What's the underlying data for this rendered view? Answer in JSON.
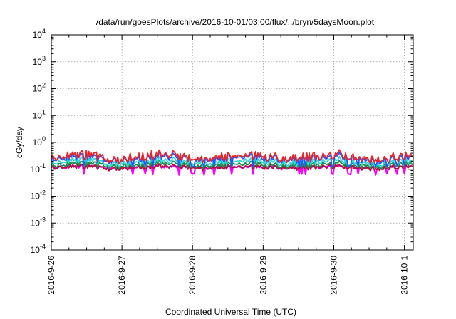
{
  "chart_data": {
    "type": "line",
    "title": "/data/run/goesPlots/archive/2016-10-01/03:00/flux/../bryn/5daysMoon.plot",
    "xlabel": "Coordinated Universal Time (UTC)",
    "ylabel": "cGy/day",
    "yscale": "log",
    "ylim": [
      0.0001,
      10000
    ],
    "xlim": [
      "2016-09-26",
      "2016-10-01T03:00"
    ],
    "x_tick_labels": [
      "2016-9-26",
      "2016-9-27",
      "2016-9-28",
      "2016-9-29",
      "2016-9-30",
      "2016-10-1"
    ],
    "y_ticks": [
      {
        "base": "10",
        "exp": "-4"
      },
      {
        "base": "10",
        "exp": "-3"
      },
      {
        "base": "10",
        "exp": "-2"
      },
      {
        "base": "10",
        "exp": "-1"
      },
      {
        "base": "10",
        "exp": "0"
      },
      {
        "base": "10",
        "exp": "1"
      },
      {
        "base": "10",
        "exp": "2"
      },
      {
        "base": "10",
        "exp": "3"
      },
      {
        "base": "10",
        "exp": "4"
      }
    ],
    "grid": true,
    "legend": "none",
    "series": [
      {
        "color": "#ff00ff",
        "typical": 0.12,
        "dips": 0.065
      },
      {
        "color": "#b0103a",
        "typical": 0.12,
        "dips": 0.11
      },
      {
        "color": "#1a8c4a",
        "typical": 0.15,
        "dips": 0.12
      },
      {
        "color": "#2fd6d6",
        "typical": 0.19,
        "dips": 0.14
      },
      {
        "color": "#2255ff",
        "typical": 0.26,
        "dips": 0.13
      },
      {
        "color": "#e8262a",
        "typical": 0.3,
        "dips": 0.24
      }
    ]
  }
}
